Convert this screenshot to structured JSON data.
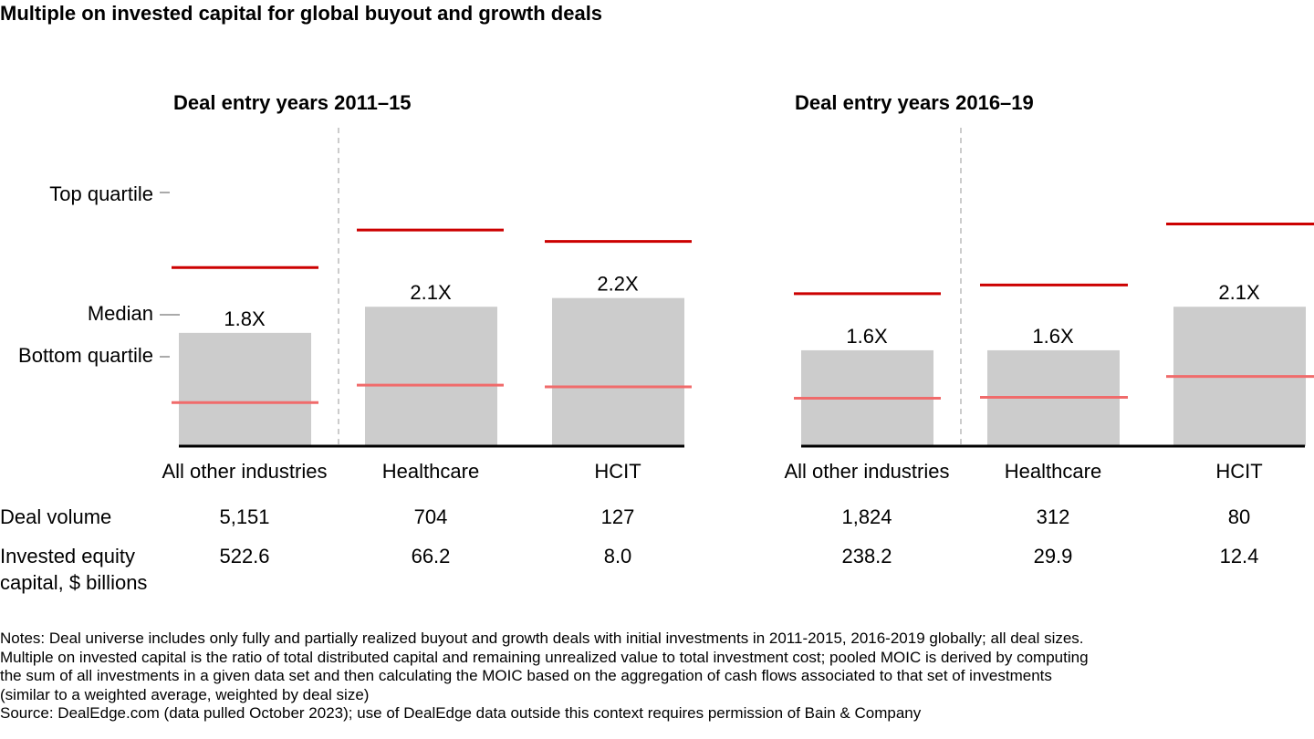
{
  "title": "Multiple on invested capital for global buyout and growth deals",
  "legend": {
    "top": "Top quartile",
    "median": "Median",
    "bottom": "Bottom quartile"
  },
  "row_labels": {
    "deal_volume": "Deal volume",
    "equity_line1": "Invested equity",
    "equity_line2": "capital, $ billions"
  },
  "colors": {
    "bar": "#cccccc",
    "top_quartile": "#cc0000",
    "bottom_quartile": "#f06b6b",
    "baseline": "#000000",
    "divider": "#999999"
  },
  "chart_data": [
    {
      "type": "bar",
      "title": "Deal entry years 2011–15",
      "categories": [
        "All other industries",
        "Healthcare",
        "HCIT"
      ],
      "series": [
        {
          "name": "Median",
          "values": [
            1.8,
            2.1,
            2.2
          ],
          "labels": [
            "1.8X",
            "2.1X",
            "2.2X"
          ]
        },
        {
          "name": "Top quartile",
          "values": [
            2.55,
            2.98,
            2.85
          ]
        },
        {
          "name": "Bottom quartile",
          "values": [
            1.0,
            1.2,
            1.18
          ]
        }
      ],
      "deal_volume": [
        "5,151",
        "704",
        "127"
      ],
      "invested_equity": [
        "522.6",
        "66.2",
        "8.0"
      ]
    },
    {
      "type": "bar",
      "title": "Deal entry years 2016–19",
      "categories": [
        "All other industries",
        "Healthcare",
        "HCIT"
      ],
      "series": [
        {
          "name": "Median",
          "values": [
            1.6,
            1.6,
            2.1
          ],
          "labels": [
            "1.6X",
            "1.6X",
            "2.1X"
          ]
        },
        {
          "name": "Top quartile",
          "values": [
            2.25,
            2.35,
            3.05
          ]
        },
        {
          "name": "Bottom quartile",
          "values": [
            1.05,
            1.06,
            1.3
          ]
        }
      ],
      "deal_volume": [
        "1,824",
        "312",
        "80"
      ],
      "invested_equity": [
        "238.2",
        "29.9",
        "12.4"
      ]
    }
  ],
  "notes": [
    "Notes: Deal universe includes only fully and partially realized buyout and growth deals with initial investments in 2011-2015, 2016-2019 globally; all deal sizes.",
    "Multiple on invested capital is the ratio of total distributed capital and remaining unrealized value to total investment cost; pooled MOIC is derived by computing",
    "the sum of all investments in a given data set and then calculating the MOIC based on the aggregation of cash flows associated to that set of investments",
    "(similar to a weighted average, weighted by deal size)",
    "Source: DealEdge.com (data pulled October 2023); use of DealEdge data outside this context requires permission of Bain & Company"
  ]
}
